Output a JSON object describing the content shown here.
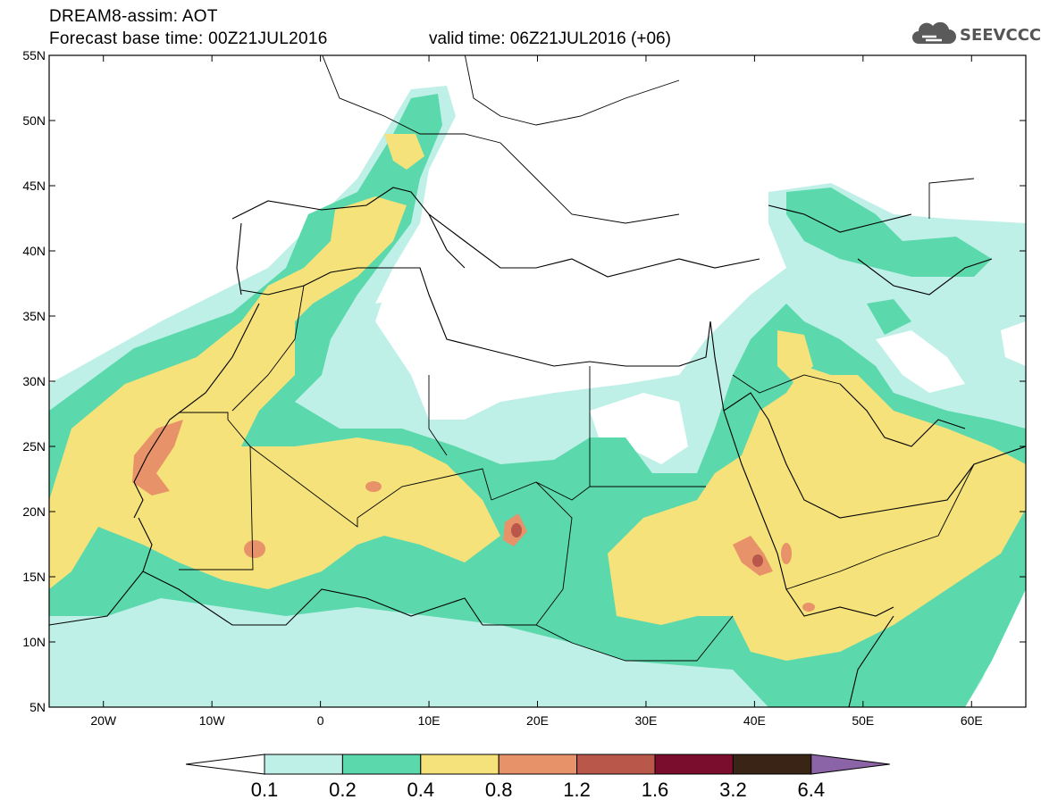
{
  "header": {
    "title": "DREAM8-assim: AOT",
    "base_time": "Forecast base time: 00Z21JUL2016",
    "valid_time": "valid time: 06Z21JUL2016 (+06)"
  },
  "logo": {
    "text": "SEEVCCC",
    "icon": "cloud-icon"
  },
  "map": {
    "lon_range": [
      -25,
      65
    ],
    "lat_range": [
      5,
      55
    ],
    "lat_ticks": [
      "5N",
      "10N",
      "15N",
      "20N",
      "25N",
      "30N",
      "35N",
      "40N",
      "45N",
      "50N",
      "55N"
    ],
    "lon_ticks": [
      "20W",
      "10W",
      "0",
      "10E",
      "20E",
      "30E",
      "40E",
      "50E",
      "60E"
    ]
  },
  "colorbar": {
    "labels": [
      "0.1",
      "0.2",
      "0.4",
      "0.8",
      "1.2",
      "1.6",
      "3.2",
      "6.4"
    ],
    "colors": [
      "#ffffff",
      "#bff0e8",
      "#5bd9ad",
      "#f5e27a",
      "#e8926a",
      "#b8574a",
      "#7a0c2e",
      "#3a2416",
      "#8b64a8"
    ]
  }
}
